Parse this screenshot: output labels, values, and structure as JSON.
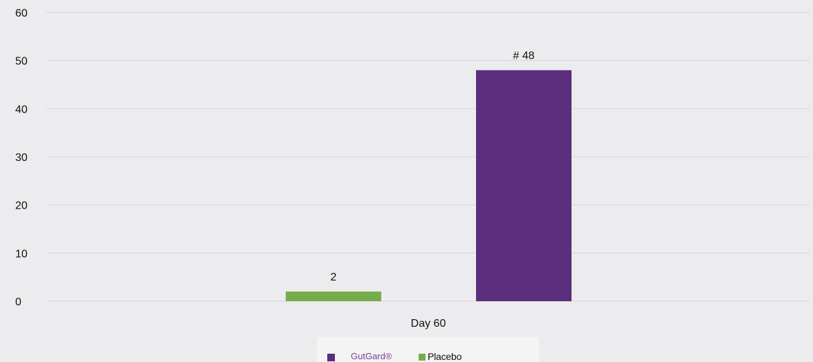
{
  "chart_data": {
    "type": "bar",
    "categories": [
      "Day 60"
    ],
    "series": [
      {
        "name": "Placebo",
        "values": [
          2
        ],
        "color": "#75ad4b",
        "labels": [
          "2"
        ]
      },
      {
        "name": "GutGard®",
        "values": [
          48
        ],
        "color": "#5a2d7d",
        "labels": [
          "# 48"
        ]
      }
    ],
    "yticks": [
      "0",
      "10",
      "20",
      "30",
      "40",
      "50",
      "60"
    ],
    "ylim": [
      0,
      60
    ],
    "xlabel": "",
    "ylabel": "",
    "title": "",
    "grid": true,
    "legend": {
      "placement": "bottom",
      "order": [
        "GutGard®",
        "Placebo"
      ]
    }
  },
  "colors": {
    "background": "#ecebed",
    "gridline": "#d6d5d8",
    "axis_text": "#111111",
    "legend_background": "#f3f4f3"
  }
}
